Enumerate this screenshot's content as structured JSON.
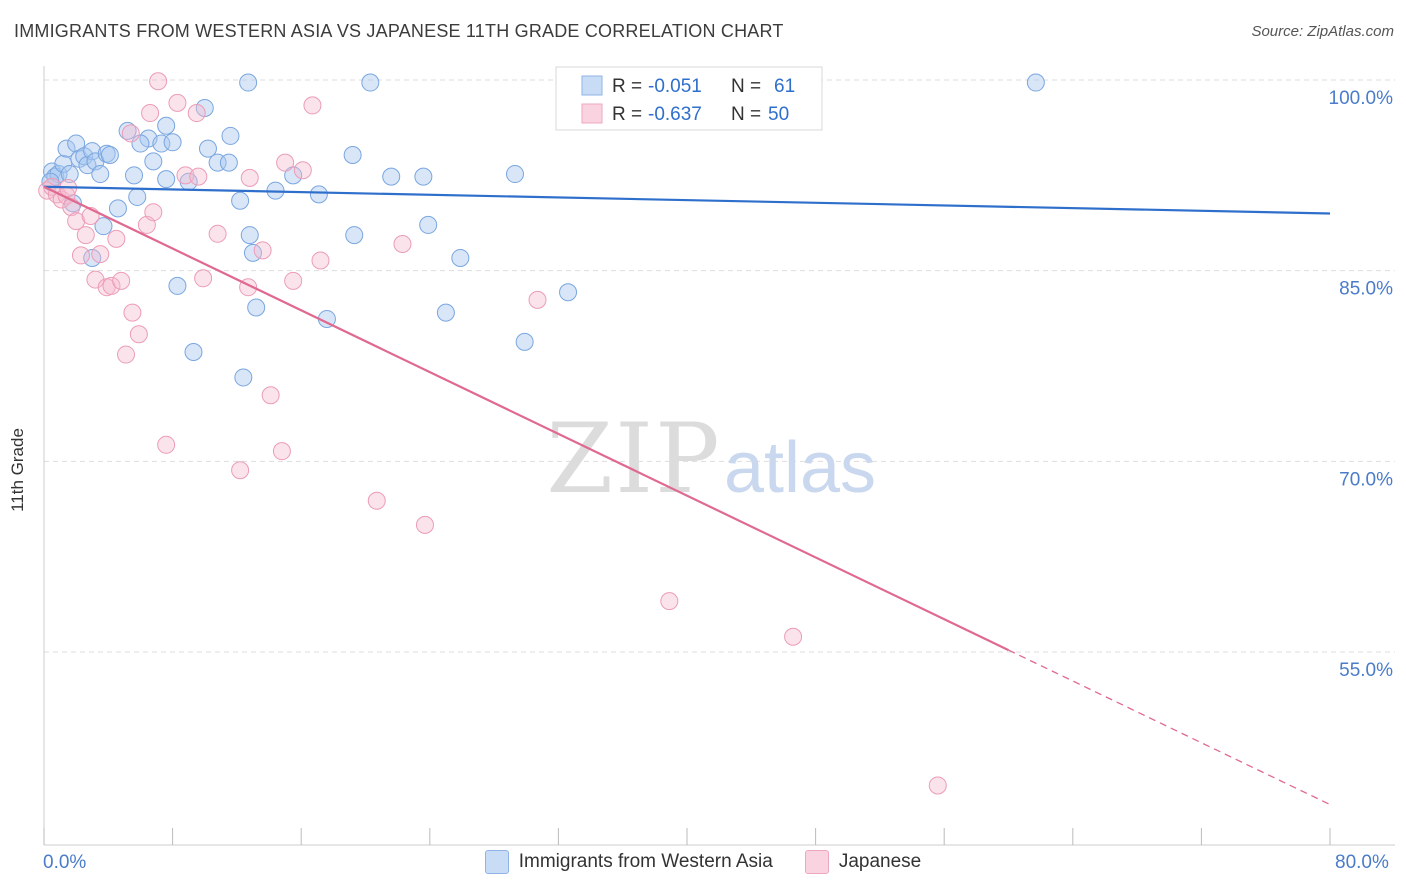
{
  "title": "IMMIGRANTS FROM WESTERN ASIA VS JAPANESE 11TH GRADE CORRELATION CHART",
  "source": "Source: ZipAtlas.com",
  "watermark": {
    "zip": "ZIP",
    "atlas": "atlas"
  },
  "colors": {
    "blue": "#a9c8f0",
    "blue_line": "#2f6fcc",
    "pink": "#f5b8cd",
    "pink_line": "#e0698f",
    "label_blue": "#4a7cc9"
  },
  "legend_top": [
    {
      "r_label": "R =",
      "r_value": "-0.051",
      "n_label": "N =",
      "n_value": "61",
      "color": "#a9c8f0"
    },
    {
      "r_label": "R =",
      "r_value": "-0.637",
      "n_label": "N =",
      "n_value": "50",
      "color": "#f5b8cd"
    }
  ],
  "legend_bottom": [
    {
      "label": "Immigrants from Western Asia",
      "color": "#a9c8f0"
    },
    {
      "label": "Japanese",
      "color": "#f5b8cd"
    }
  ],
  "chart_data": {
    "type": "scatter",
    "title": "IMMIGRANTS FROM WESTERN ASIA VS JAPANESE 11TH GRADE CORRELATION CHART",
    "xlabel": "",
    "ylabel": "11th Grade",
    "xlim": [
      0,
      80
    ],
    "ylim": [
      40,
      101
    ],
    "x_tick_labels": [
      "0.0%",
      "80.0%"
    ],
    "y_ticks": [
      55,
      70,
      85,
      100
    ],
    "y_tick_labels": [
      "55.0%",
      "70.0%",
      "85.0%",
      "100.0%"
    ],
    "grid": true,
    "legend_position": "top-center",
    "series": [
      {
        "name": "Immigrants from Western Asia",
        "color": "#a9c8f0",
        "trend": {
          "x": [
            0,
            80
          ],
          "y": [
            91.6,
            89.5
          ],
          "dashed_from": null
        },
        "points": [
          [
            0.5,
            92.8
          ],
          [
            0.7,
            92.4
          ],
          [
            0.9,
            92.6
          ],
          [
            1.2,
            93.4
          ],
          [
            1.4,
            94.6
          ],
          [
            1.6,
            92.6
          ],
          [
            2.0,
            95.0
          ],
          [
            2.2,
            93.8
          ],
          [
            2.5,
            94.0
          ],
          [
            2.7,
            93.3
          ],
          [
            3.0,
            94.4
          ],
          [
            3.2,
            93.6
          ],
          [
            3.5,
            92.6
          ],
          [
            3.9,
            94.2
          ],
          [
            4.1,
            94.1
          ],
          [
            5.2,
            96.0
          ],
          [
            5.6,
            92.5
          ],
          [
            5.8,
            90.8
          ],
          [
            6.5,
            95.4
          ],
          [
            6.8,
            93.6
          ],
          [
            7.3,
            95.0
          ],
          [
            7.6,
            92.2
          ],
          [
            8.0,
            95.1
          ],
          [
            8.3,
            83.8
          ],
          [
            9.0,
            92.0
          ],
          [
            9.3,
            78.6
          ],
          [
            10.2,
            94.6
          ],
          [
            10.8,
            93.5
          ],
          [
            11.6,
            95.6
          ],
          [
            12.2,
            90.5
          ],
          [
            12.8,
            87.8
          ],
          [
            13.2,
            82.1
          ],
          [
            14.4,
            91.3
          ],
          [
            15.5,
            92.5
          ],
          [
            17.1,
            91.0
          ],
          [
            17.6,
            81.2
          ],
          [
            19.2,
            94.1
          ],
          [
            20.3,
            99.8
          ],
          [
            21.6,
            92.4
          ],
          [
            23.9,
            88.6
          ],
          [
            25.0,
            81.7
          ],
          [
            25.9,
            86.0
          ],
          [
            29.3,
            92.6
          ],
          [
            29.9,
            79.4
          ],
          [
            32.6,
            83.3
          ],
          [
            12.4,
            76.6
          ],
          [
            1.8,
            90.3
          ],
          [
            0.4,
            92.0
          ],
          [
            3.7,
            88.5
          ],
          [
            10.0,
            97.8
          ],
          [
            11.5,
            93.5
          ],
          [
            4.6,
            89.9
          ],
          [
            6.0,
            95.0
          ],
          [
            7.6,
            96.4
          ],
          [
            13.0,
            86.4
          ],
          [
            3.0,
            86.0
          ],
          [
            23.6,
            92.4
          ],
          [
            38.0,
            99.9
          ],
          [
            61.7,
            99.8
          ],
          [
            12.7,
            99.8
          ],
          [
            19.3,
            87.8
          ]
        ]
      },
      {
        "name": "Japanese",
        "color": "#f5b8cd",
        "trend": {
          "x": [
            0,
            80
          ],
          "y": [
            91.6,
            43.0
          ],
          "dashed_from": 60
        },
        "points": [
          [
            0.2,
            91.3
          ],
          [
            0.5,
            91.6
          ],
          [
            0.8,
            91.0
          ],
          [
            1.1,
            90.6
          ],
          [
            1.4,
            90.9
          ],
          [
            1.7,
            90.0
          ],
          [
            2.0,
            88.9
          ],
          [
            2.3,
            86.2
          ],
          [
            2.6,
            87.8
          ],
          [
            2.9,
            89.3
          ],
          [
            3.2,
            84.3
          ],
          [
            3.5,
            86.3
          ],
          [
            3.9,
            83.7
          ],
          [
            4.2,
            83.8
          ],
          [
            4.5,
            87.5
          ],
          [
            4.8,
            84.2
          ],
          [
            5.1,
            78.4
          ],
          [
            5.5,
            81.7
          ],
          [
            5.9,
            80.0
          ],
          [
            6.4,
            88.6
          ],
          [
            6.8,
            89.6
          ],
          [
            7.1,
            99.9
          ],
          [
            7.6,
            71.3
          ],
          [
            8.3,
            98.2
          ],
          [
            8.8,
            92.5
          ],
          [
            9.5,
            97.4
          ],
          [
            9.9,
            84.4
          ],
          [
            10.8,
            87.9
          ],
          [
            12.2,
            69.3
          ],
          [
            12.7,
            83.7
          ],
          [
            13.6,
            86.6
          ],
          [
            14.1,
            75.2
          ],
          [
            14.8,
            70.8
          ],
          [
            15.5,
            84.2
          ],
          [
            16.1,
            92.9
          ],
          [
            16.7,
            98.0
          ],
          [
            17.2,
            85.8
          ],
          [
            20.7,
            66.9
          ],
          [
            22.3,
            87.1
          ],
          [
            23.7,
            65.0
          ],
          [
            30.7,
            82.7
          ],
          [
            38.9,
            59.0
          ],
          [
            46.6,
            56.2
          ],
          [
            55.6,
            44.5
          ],
          [
            1.5,
            91.5
          ],
          [
            5.4,
            95.8
          ],
          [
            9.6,
            92.4
          ],
          [
            12.8,
            92.3
          ],
          [
            15.0,
            93.5
          ],
          [
            6.6,
            97.4
          ]
        ]
      }
    ]
  }
}
